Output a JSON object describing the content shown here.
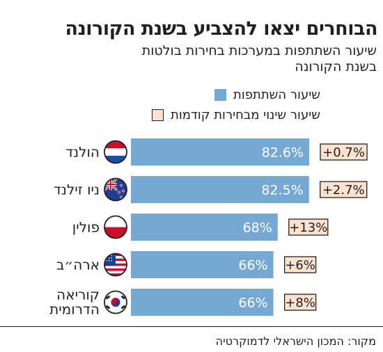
{
  "chart_data": {
    "type": "bar",
    "orientation": "horizontal",
    "title": "הבוחרים יצאו להצביע בשנת הקורונה",
    "subtitle": "שיעור השתתפות במערכות בחירות בולטות בשנת הקורונה",
    "legend": [
      "שיעור השתתפות",
      "שיעור שינוי מבחירות קודמות"
    ],
    "categories": [
      "הולנד",
      "ניו זילנד",
      "פולין",
      "ארה״ב",
      "קוריאה הדרומית"
    ],
    "series": [
      {
        "name": "שיעור השתתפות",
        "values": [
          82.6,
          82.5,
          68,
          66,
          66
        ],
        "value_labels": [
          "82.6%",
          "82.5%",
          "68%",
          "66%",
          "66%"
        ]
      },
      {
        "name": "שיעור שינוי מבחירות קודמות",
        "values": [
          0.7,
          2.7,
          13,
          6,
          8
        ],
        "value_labels": [
          "+0.7%",
          "+2.7%",
          "+13%",
          "+6%",
          "+8%"
        ]
      }
    ],
    "flag_icons": [
      "netherlands-flag-icon",
      "new-zealand-flag-icon",
      "poland-flag-icon",
      "usa-flag-icon",
      "south-korea-flag-icon"
    ],
    "colors": {
      "bar": "#75a9d4",
      "change_box": "#fce3cf",
      "text": "#231f20"
    },
    "source": "מקור: המכון הישראלי לדמוקרטיה"
  }
}
